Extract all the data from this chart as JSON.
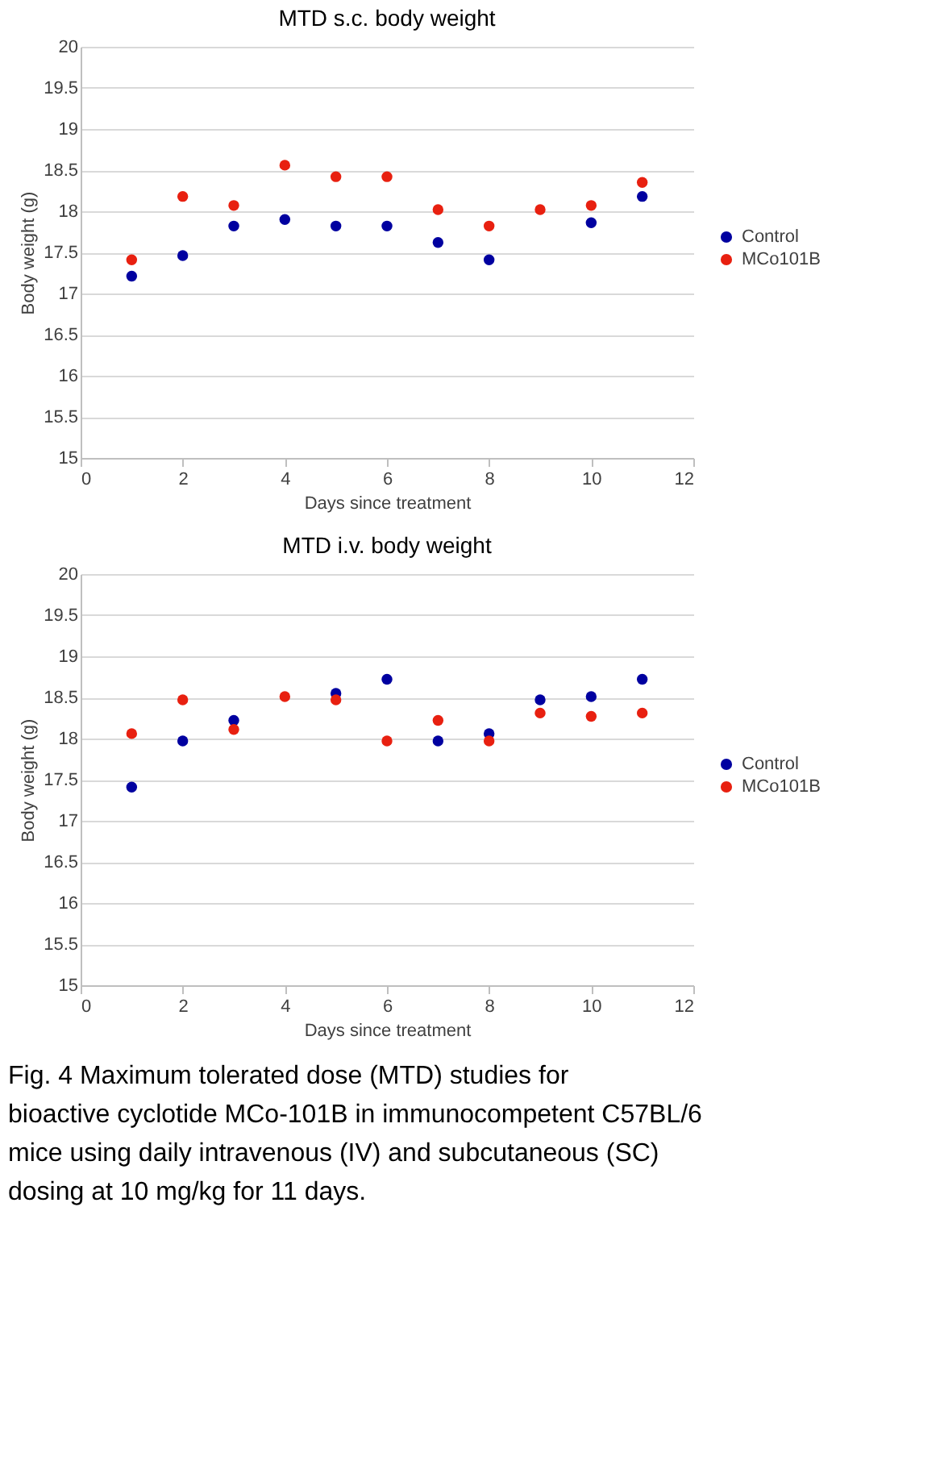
{
  "chart_data": [
    {
      "type": "scatter",
      "title": "MTD s.c. body weight",
      "xlabel": "Days since treatment",
      "ylabel": "Body weight (g)",
      "x": [
        1,
        2,
        3,
        4,
        5,
        6,
        7,
        8,
        9,
        10,
        11
      ],
      "series": [
        {
          "name": "Control",
          "color": "#0000a0",
          "values": [
            17.21,
            17.46,
            17.82,
            17.9,
            17.82,
            17.82,
            17.62,
            17.41,
            null,
            17.86,
            18.18
          ]
        },
        {
          "name": "MCo101B",
          "color": "#e82010",
          "values": [
            17.41,
            18.18,
            18.07,
            18.56,
            18.42,
            18.42,
            18.02,
            17.82,
            18.02,
            18.07,
            18.35
          ]
        }
      ],
      "xlim": [
        0,
        12
      ],
      "xticks": [
        0,
        2,
        4,
        6,
        8,
        10,
        12
      ],
      "ylim": [
        15,
        20
      ],
      "yticks": [
        15,
        15.5,
        16,
        16.5,
        17,
        17.5,
        18,
        18.5,
        19,
        19.5,
        20
      ],
      "grid": "y",
      "legend": "right",
      "marker": "circle"
    },
    {
      "type": "scatter",
      "title": "MTD i.v. body weight",
      "xlabel": "Days since treatment",
      "ylabel": "Body weight (g)",
      "x": [
        1,
        2,
        3,
        4,
        5,
        6,
        7,
        8,
        9,
        10,
        11
      ],
      "series": [
        {
          "name": "Control",
          "color": "#0000a0",
          "values": [
            17.41,
            17.97,
            18.22,
            null,
            18.55,
            18.72,
            17.97,
            18.06,
            18.47,
            18.51,
            18.72
          ]
        },
        {
          "name": "MCo101B",
          "color": "#e82010",
          "values": [
            18.06,
            18.47,
            18.11,
            18.51,
            18.47,
            17.97,
            18.22,
            17.97,
            18.31,
            18.27,
            18.31
          ]
        }
      ],
      "xlim": [
        0,
        12
      ],
      "xticks": [
        0,
        2,
        4,
        6,
        8,
        10,
        12
      ],
      "ylim": [
        15,
        20
      ],
      "yticks": [
        15,
        15.5,
        16,
        16.5,
        17,
        17.5,
        18,
        18.5,
        19,
        19.5,
        20
      ],
      "grid": "y",
      "legend": "right",
      "marker": "circle",
      "annotations": [
        "Fig. 4 Maximum tolerated dose (MTD) studies for bioactive cyclotide MCo-101B in immunocompetent C57BL/6 mice using daily intravenous (IV) and subcutaneous (SC) dosing at 10 mg/kg  for 11 days."
      ]
    }
  ]
}
